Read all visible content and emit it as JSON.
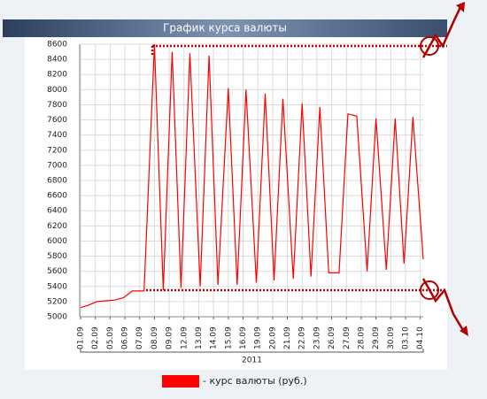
{
  "chart_data": {
    "type": "line",
    "title": "График курса валюты",
    "x_label": "2011",
    "x": [
      0,
      0.5,
      1.1,
      1.7,
      2.3,
      2.9,
      3.5,
      4.3,
      5.0,
      5.6,
      6.2,
      6.8,
      7.4,
      8.1,
      8.7,
      9.3,
      10.0,
      10.6,
      11.2,
      11.9,
      12.5,
      13.1,
      13.7,
      14.4,
      15.0,
      15.6,
      16.2,
      16.8,
      17.5,
      18.1,
      18.7,
      19.4,
      20.0,
      20.7,
      21.3,
      21.9,
      22.5,
      23.2
    ],
    "series": [
      {
        "name": "- курс валюты (руб.)",
        "color": "#ff0000",
        "values": [
          5120,
          5150,
          5200,
          5210,
          5220,
          5250,
          5340,
          5340,
          8600,
          5350,
          8500,
          5380,
          8480,
          5400,
          8450,
          5420,
          8020,
          5420,
          8000,
          5450,
          7950,
          5480,
          7880,
          5500,
          7820,
          5530,
          7770,
          5580,
          5580,
          7680,
          7650,
          5600,
          7620,
          5620,
          7620,
          5700,
          7640,
          5760
        ]
      }
    ],
    "xlim": [
      0,
      23.2
    ],
    "xticks": [
      {
        "value": 0,
        "label": "01.09"
      },
      {
        "value": 1,
        "label": "02.09"
      },
      {
        "value": 2,
        "label": "05.09"
      },
      {
        "value": 3,
        "label": "06.09"
      },
      {
        "value": 4,
        "label": "07.09"
      },
      {
        "value": 5,
        "label": "08.09"
      },
      {
        "value": 6,
        "label": "09.09"
      },
      {
        "value": 7,
        "label": "12.09"
      },
      {
        "value": 8,
        "label": "13.09"
      },
      {
        "value": 9,
        "label": "14.09"
      },
      {
        "value": 10,
        "label": "15.09"
      },
      {
        "value": 11,
        "label": "16.09"
      },
      {
        "value": 12,
        "label": "19.09"
      },
      {
        "value": 13,
        "label": "20.09"
      },
      {
        "value": 14,
        "label": "21.09"
      },
      {
        "value": 15,
        "label": "22.09"
      },
      {
        "value": 16,
        "label": "23.09"
      },
      {
        "value": 17,
        "label": "26.09"
      },
      {
        "value": 18,
        "label": "27.09"
      },
      {
        "value": 19,
        "label": "28.09"
      },
      {
        "value": 20,
        "label": "29.09"
      },
      {
        "value": 21,
        "label": "30.09"
      },
      {
        "value": 22,
        "label": "03.10"
      },
      {
        "value": 23,
        "label": "04.10"
      }
    ],
    "ylim": [
      5000,
      8600
    ],
    "yticks": [
      5000,
      5200,
      5400,
      5600,
      5800,
      6000,
      6200,
      6400,
      6600,
      6800,
      7000,
      7200,
      7400,
      7600,
      7800,
      8000,
      8200,
      8400,
      8600
    ],
    "grid": true
  }
}
